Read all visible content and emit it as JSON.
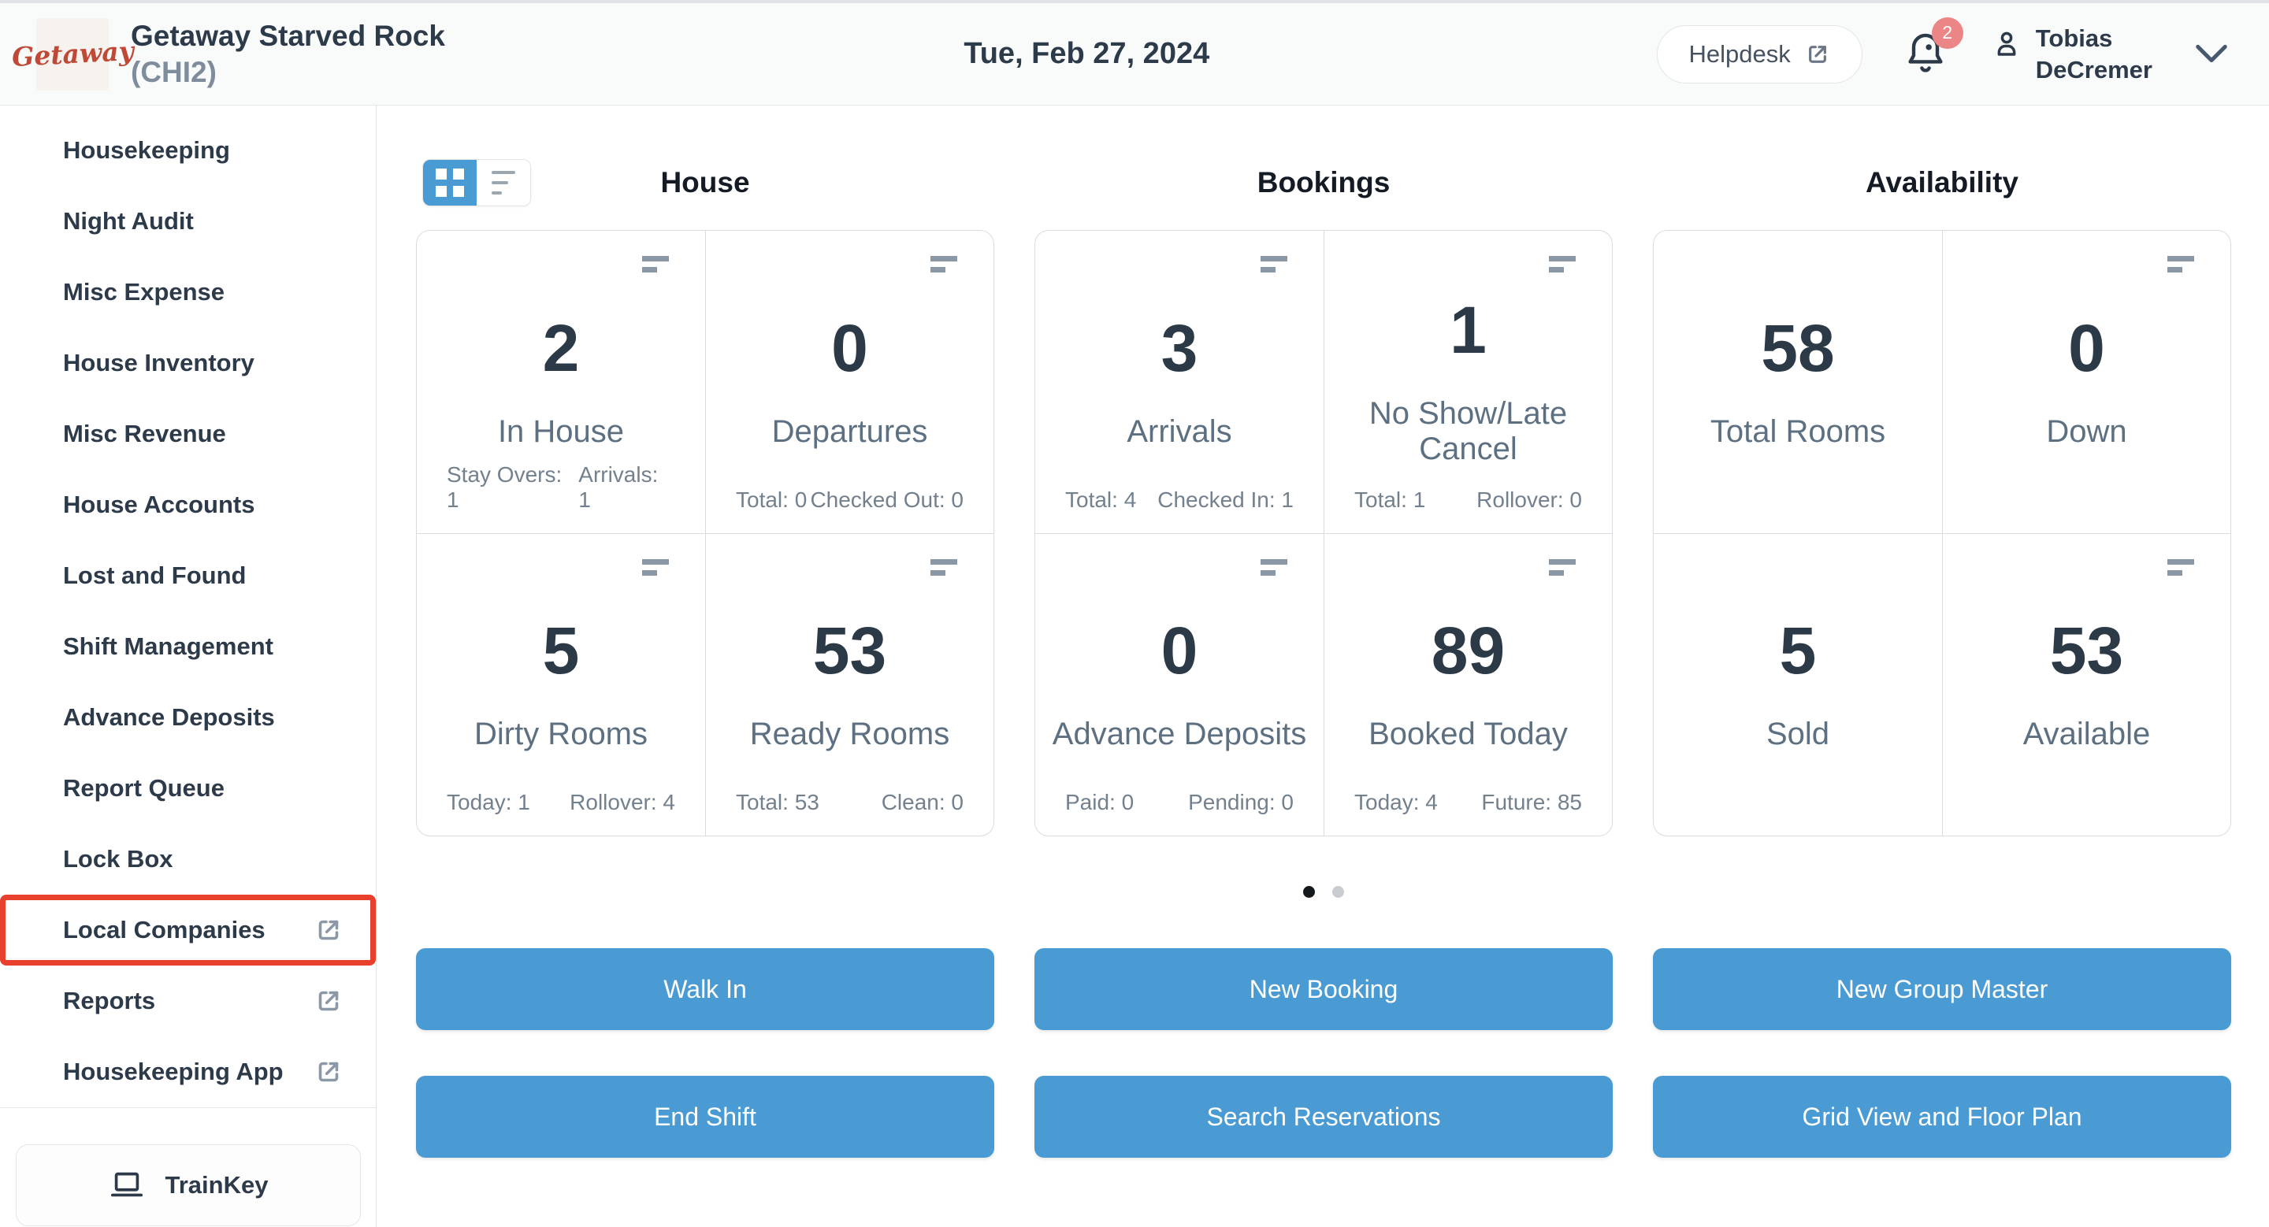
{
  "header": {
    "logo_text": "Getaway",
    "property_name": "Getaway Starved Rock",
    "property_code": "(CHI2)",
    "date": "Tue, Feb 27, 2024",
    "helpdesk_label": "Helpdesk",
    "notification_count": "2",
    "user_name_line1": "Tobias",
    "user_name_line2": "DeCremer"
  },
  "sidebar": {
    "items": [
      {
        "label": "Housekeeping",
        "external": false,
        "highlighted": false
      },
      {
        "label": "Night Audit",
        "external": false,
        "highlighted": false
      },
      {
        "label": "Misc Expense",
        "external": false,
        "highlighted": false
      },
      {
        "label": "House Inventory",
        "external": false,
        "highlighted": false
      },
      {
        "label": "Misc Revenue",
        "external": false,
        "highlighted": false
      },
      {
        "label": "House Accounts",
        "external": false,
        "highlighted": false
      },
      {
        "label": "Lost and Found",
        "external": false,
        "highlighted": false
      },
      {
        "label": "Shift Management",
        "external": false,
        "highlighted": false
      },
      {
        "label": "Advance Deposits",
        "external": false,
        "highlighted": false
      },
      {
        "label": "Report Queue",
        "external": false,
        "highlighted": false
      },
      {
        "label": "Lock Box",
        "external": false,
        "highlighted": false
      },
      {
        "label": "Local Companies",
        "external": true,
        "highlighted": true
      },
      {
        "label": "Reports",
        "external": true,
        "highlighted": false
      },
      {
        "label": "Housekeeping App",
        "external": true,
        "highlighted": false
      }
    ],
    "trainkey_label": "TrainKey"
  },
  "dashboard": {
    "sections": [
      {
        "title": "House",
        "cards": [
          {
            "value": "2",
            "label": "In House",
            "menu_icon": true,
            "stats": [
              "Stay Overs: 1",
              "Arrivals: 1"
            ]
          },
          {
            "value": "0",
            "label": "Departures",
            "menu_icon": true,
            "stats": [
              "Total: 0",
              "Checked Out: 0"
            ]
          },
          {
            "value": "5",
            "label": "Dirty Rooms",
            "menu_icon": true,
            "stats": [
              "Today: 1",
              "Rollover: 4"
            ]
          },
          {
            "value": "53",
            "label": "Ready Rooms",
            "menu_icon": true,
            "stats": [
              "Total: 53",
              "Clean: 0"
            ]
          }
        ]
      },
      {
        "title": "Bookings",
        "cards": [
          {
            "value": "3",
            "label": "Arrivals",
            "menu_icon": true,
            "stats": [
              "Total: 4",
              "Checked In: 1"
            ]
          },
          {
            "value": "1",
            "label": "No Show/Late Cancel",
            "menu_icon": true,
            "stats": [
              "Total: 1",
              "Rollover: 0"
            ]
          },
          {
            "value": "0",
            "label": "Advance Deposits",
            "menu_icon": true,
            "stats": [
              "Paid: 0",
              "Pending: 0"
            ]
          },
          {
            "value": "89",
            "label": "Booked Today",
            "menu_icon": true,
            "stats": [
              "Today: 4",
              "Future: 85"
            ]
          }
        ]
      },
      {
        "title": "Availability",
        "cards": [
          {
            "value": "58",
            "label": "Total Rooms",
            "menu_icon": false,
            "stats": []
          },
          {
            "value": "0",
            "label": "Down",
            "menu_icon": true,
            "stats": []
          },
          {
            "value": "5",
            "label": "Sold",
            "menu_icon": false,
            "stats": []
          },
          {
            "value": "53",
            "label": "Available",
            "menu_icon": true,
            "stats": []
          }
        ]
      }
    ],
    "pagination": {
      "total_dots": 2,
      "active_index": 0
    },
    "action_rows": [
      [
        "Walk In",
        "New Booking",
        "New Group Master"
      ],
      [
        "End Shift",
        "Search Reservations",
        "Grid View and Floor Plan"
      ]
    ]
  },
  "colors": {
    "accent_blue": "#4a9bd3",
    "highlight_red": "#e8402c",
    "badge_red": "#ec8585",
    "logo_red": "#bf4936",
    "navy_text": "#2d3a49"
  }
}
